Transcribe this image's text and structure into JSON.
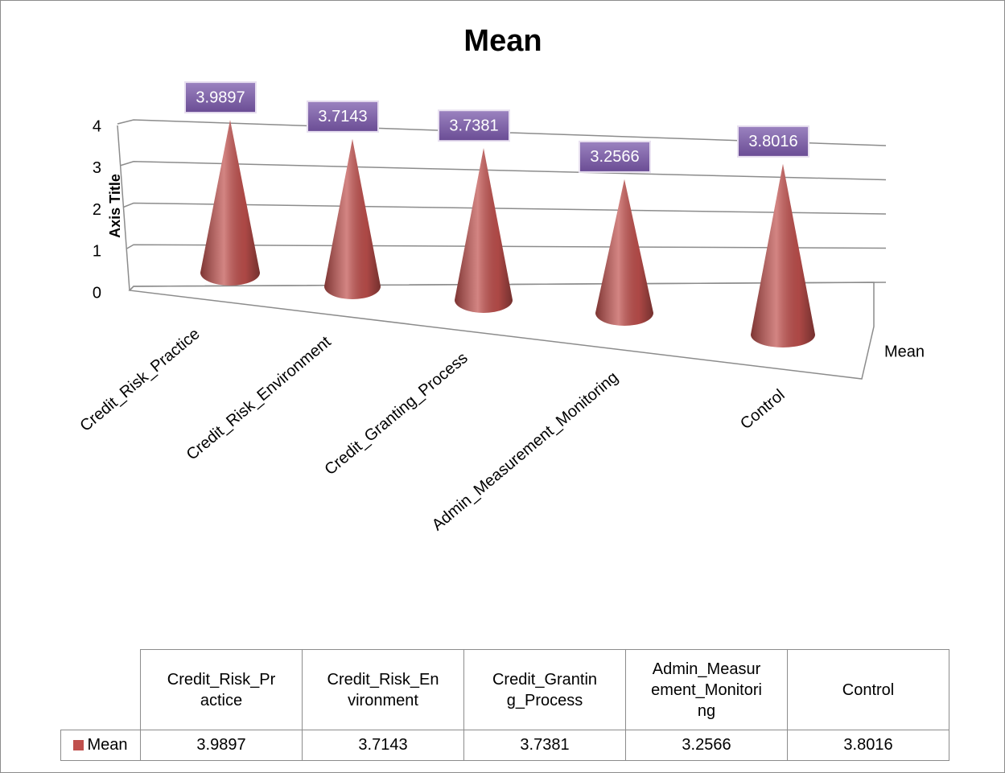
{
  "chart_data": {
    "type": "cone",
    "title": "Mean",
    "y_axis_title": "Axis Title",
    "categories": [
      "Credit_Risk_Practice",
      "Credit_Risk_Environment",
      "Credit_Granting_Process",
      "Admin_Measurement_Monitoring",
      "Control"
    ],
    "series": [
      {
        "name": "Mean",
        "color": "#c0504d",
        "values": [
          3.9897,
          3.7143,
          3.7381,
          3.2566,
          3.8016
        ]
      }
    ],
    "ylim": [
      0,
      4
    ],
    "yticks": [
      0,
      1,
      2,
      3,
      4
    ],
    "grid": true,
    "data_labels": true,
    "data_table": true
  }
}
